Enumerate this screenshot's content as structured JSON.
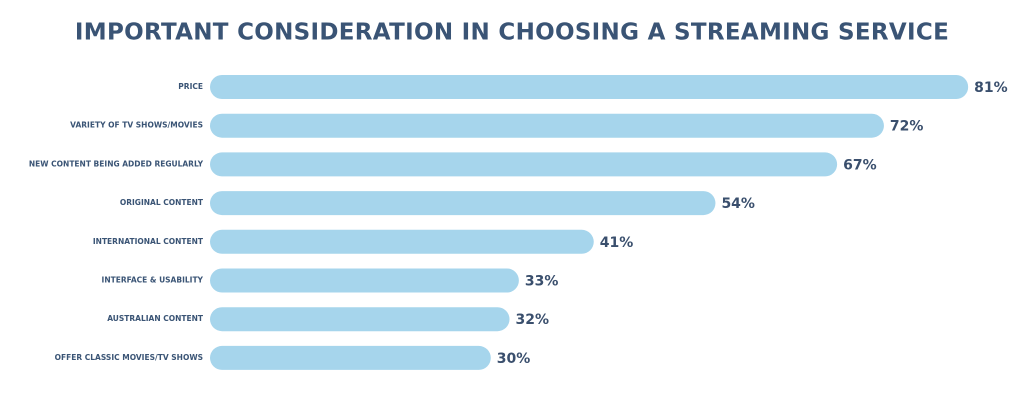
{
  "chart_data": {
    "type": "bar",
    "orientation": "horizontal",
    "title": "IMPORTANT CONSIDERATION IN CHOOSING A STREAMING SERVICE",
    "categories": [
      "PRICE",
      "VARIETY OF TV SHOWS/MOVIES",
      "NEW CONTENT BEING ADDED REGULARLY",
      "ORIGINAL CONTENT",
      "INTERNATIONAL CONTENT",
      "INTERFACE & USABILITY",
      "AUSTRALIAN CONTENT",
      "OFFER CLASSIC MOVIES/TV SHOWS"
    ],
    "values": [
      81,
      72,
      67,
      54,
      41,
      33,
      32,
      30
    ],
    "value_labels": [
      "81%",
      "72%",
      "67%",
      "54%",
      "41%",
      "33%",
      "32%",
      "30%"
    ],
    "color": "#a6d5ec"
  }
}
